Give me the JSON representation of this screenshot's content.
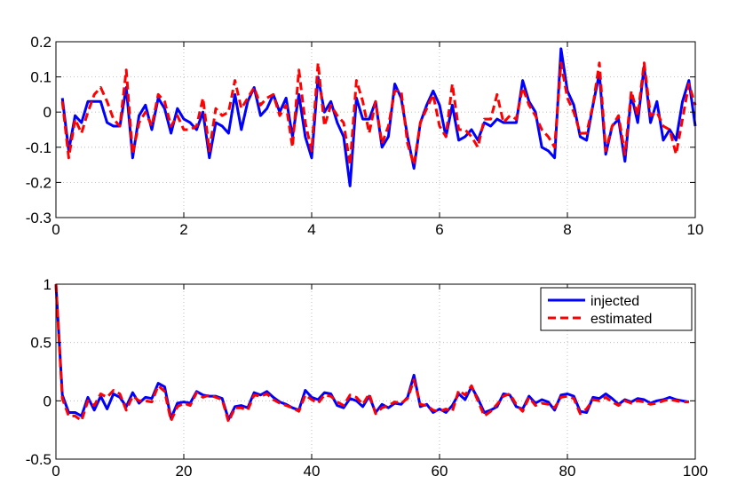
{
  "chart_data": [
    {
      "type": "line",
      "title": "",
      "xlabel": "",
      "ylabel": "",
      "xlim": [
        0,
        10
      ],
      "ylim": [
        -0.3,
        0.2
      ],
      "xticks": [
        0,
        2,
        4,
        6,
        8,
        10
      ],
      "yticks": [
        -0.3,
        -0.2,
        -0.1,
        0,
        0.1,
        0.2
      ],
      "xtick_labels": [
        "0",
        "2",
        "4",
        "6",
        "8",
        "10"
      ],
      "ytick_labels": [
        "-0.3",
        "-0.2",
        "-0.1",
        "0",
        "0.1",
        "0.2"
      ],
      "grid": true,
      "x": [
        0.1,
        0.2,
        0.3,
        0.4,
        0.5,
        0.6,
        0.7,
        0.8,
        0.9,
        1.0,
        1.1,
        1.2,
        1.3,
        1.4,
        1.5,
        1.6,
        1.7,
        1.8,
        1.9,
        2.0,
        2.1,
        2.2,
        2.3,
        2.4,
        2.5,
        2.6,
        2.7,
        2.8,
        2.9,
        3.0,
        3.1,
        3.2,
        3.3,
        3.4,
        3.5,
        3.6,
        3.7,
        3.8,
        3.9,
        4.0,
        4.1,
        4.2,
        4.3,
        4.4,
        4.5,
        4.6,
        4.7,
        4.8,
        4.9,
        5.0,
        5.1,
        5.2,
        5.3,
        5.4,
        5.5,
        5.6,
        5.7,
        5.8,
        5.9,
        6.0,
        6.1,
        6.2,
        6.3,
        6.4,
        6.5,
        6.6,
        6.7,
        6.8,
        6.9,
        7.0,
        7.1,
        7.2,
        7.3,
        7.4,
        7.5,
        7.6,
        7.7,
        7.8,
        7.9,
        8.0,
        8.1,
        8.2,
        8.3,
        8.4,
        8.5,
        8.6,
        8.7,
        8.8,
        8.9,
        9.0,
        9.1,
        9.2,
        9.3,
        9.4,
        9.5,
        9.6,
        9.7,
        9.8,
        9.9,
        10.0
      ],
      "series": [
        {
          "name": "injected",
          "color": "#0000ff",
          "style": "solid",
          "values": [
            0.04,
            -0.11,
            -0.01,
            -0.03,
            0.03,
            0.03,
            0.03,
            -0.03,
            -0.04,
            -0.04,
            0.07,
            -0.13,
            -0.01,
            0.02,
            -0.05,
            0.04,
            0.01,
            -0.06,
            0.01,
            -0.02,
            -0.03,
            -0.05,
            0.0,
            -0.13,
            -0.03,
            -0.04,
            -0.06,
            0.05,
            -0.05,
            0.03,
            0.07,
            -0.01,
            0.01,
            0.05,
            0.0,
            0.04,
            -0.07,
            0.05,
            -0.07,
            -0.13,
            0.1,
            0.0,
            0.03,
            -0.03,
            -0.07,
            -0.21,
            0.04,
            -0.02,
            -0.02,
            0.03,
            -0.1,
            -0.07,
            0.08,
            0.04,
            -0.07,
            -0.16,
            -0.03,
            0.02,
            0.06,
            0.02,
            -0.07,
            0.02,
            -0.08,
            -0.07,
            -0.05,
            -0.08,
            -0.03,
            -0.04,
            -0.02,
            -0.03,
            -0.03,
            -0.03,
            0.09,
            0.03,
            0.0,
            -0.1,
            -0.11,
            -0.13,
            0.18,
            0.06,
            0.02,
            -0.07,
            -0.08,
            0.02,
            0.11,
            -0.12,
            -0.04,
            -0.02,
            -0.14,
            0.05,
            -0.03,
            0.13,
            -0.03,
            0.03,
            -0.08,
            -0.05,
            -0.08,
            0.03,
            0.09,
            -0.04
          ]
        },
        {
          "name": "estimated",
          "color": "#ff0000",
          "style": "dashed",
          "values": [
            0.03,
            -0.13,
            -0.02,
            -0.06,
            0.0,
            0.05,
            0.07,
            0.03,
            -0.02,
            -0.04,
            0.12,
            -0.12,
            -0.03,
            0.0,
            -0.04,
            0.05,
            0.03,
            -0.04,
            -0.01,
            -0.05,
            -0.05,
            -0.04,
            0.04,
            -0.11,
            0.01,
            -0.01,
            0.0,
            0.09,
            0.01,
            0.04,
            0.07,
            0.02,
            0.04,
            0.05,
            -0.01,
            0.02,
            -0.1,
            0.12,
            -0.03,
            -0.11,
            0.14,
            -0.04,
            0.02,
            -0.01,
            -0.03,
            -0.15,
            0.09,
            0.03,
            -0.06,
            0.03,
            -0.09,
            -0.04,
            0.06,
            0.06,
            -0.09,
            -0.15,
            -0.03,
            0.01,
            0.05,
            -0.04,
            -0.07,
            0.08,
            -0.05,
            -0.05,
            -0.07,
            -0.1,
            -0.02,
            -0.02,
            0.05,
            -0.03,
            -0.01,
            -0.02,
            0.07,
            0.02,
            -0.01,
            -0.05,
            -0.07,
            -0.1,
            0.14,
            0.04,
            0.0,
            -0.06,
            -0.06,
            0.02,
            0.14,
            -0.11,
            -0.04,
            -0.01,
            -0.12,
            0.06,
            -0.01,
            0.14,
            -0.01,
            0.0,
            -0.04,
            -0.05,
            -0.12,
            -0.02,
            0.08,
            0.02
          ]
        }
      ]
    },
    {
      "type": "line",
      "title": "",
      "xlabel": "",
      "ylabel": "",
      "xlim": [
        0,
        100
      ],
      "ylim": [
        -0.5,
        1
      ],
      "xticks": [
        0,
        20,
        40,
        60,
        80,
        100
      ],
      "yticks": [
        -0.5,
        0,
        0.5,
        1
      ],
      "xtick_labels": [
        "0",
        "20",
        "40",
        "60",
        "80",
        "100"
      ],
      "ytick_labels": [
        "-0.5",
        "0",
        "0.5",
        "1"
      ],
      "grid": true,
      "legend": {
        "position": "top-right",
        "entries": [
          "injected",
          "estimated"
        ]
      },
      "x": [
        0,
        1,
        2,
        3,
        4,
        5,
        6,
        7,
        8,
        9,
        10,
        11,
        12,
        13,
        14,
        15,
        16,
        17,
        18,
        19,
        20,
        21,
        22,
        23,
        24,
        25,
        26,
        27,
        28,
        29,
        30,
        31,
        32,
        33,
        34,
        35,
        36,
        37,
        38,
        39,
        40,
        41,
        42,
        43,
        44,
        45,
        46,
        47,
        48,
        49,
        50,
        51,
        52,
        53,
        54,
        55,
        56,
        57,
        58,
        59,
        60,
        61,
        62,
        63,
        64,
        65,
        66,
        67,
        68,
        69,
        70,
        71,
        72,
        73,
        74,
        75,
        76,
        77,
        78,
        79,
        80,
        81,
        82,
        83,
        84,
        85,
        86,
        87,
        88,
        89,
        90,
        91,
        92,
        93,
        94,
        95,
        96,
        97,
        98,
        99
      ],
      "series": [
        {
          "name": "injected",
          "color": "#0000ff",
          "style": "solid",
          "values": [
            1.0,
            0.05,
            -0.1,
            -0.1,
            -0.13,
            0.03,
            -0.08,
            0.04,
            -0.07,
            0.06,
            0.03,
            -0.05,
            0.07,
            -0.02,
            0.03,
            0.02,
            0.15,
            0.12,
            -0.15,
            -0.02,
            -0.01,
            -0.02,
            0.08,
            0.05,
            0.04,
            0.04,
            0.02,
            -0.16,
            -0.05,
            -0.04,
            -0.06,
            0.07,
            0.05,
            0.08,
            0.03,
            -0.01,
            -0.03,
            -0.06,
            -0.08,
            0.09,
            0.03,
            0.01,
            0.07,
            0.06,
            -0.04,
            -0.06,
            0.02,
            0.0,
            -0.05,
            0.04,
            -0.1,
            -0.03,
            -0.06,
            -0.02,
            -0.03,
            0.03,
            0.22,
            -0.05,
            -0.03,
            -0.1,
            -0.07,
            -0.1,
            -0.04,
            0.06,
            0.01,
            0.12,
            0.02,
            -0.1,
            -0.08,
            -0.05,
            0.06,
            0.05,
            -0.05,
            -0.07,
            0.04,
            -0.02,
            0.01,
            -0.01,
            -0.08,
            0.05,
            0.06,
            0.04,
            -0.09,
            -0.1,
            0.03,
            0.02,
            0.06,
            0.02,
            -0.03,
            0.01,
            -0.01,
            0.02,
            0.01,
            -0.02,
            0.0,
            0.01,
            0.03,
            0.01,
            0.0,
            -0.01
          ]
        },
        {
          "name": "estimated",
          "color": "#ff0000",
          "style": "dashed",
          "values": [
            1.0,
            0.02,
            -0.13,
            -0.13,
            -0.17,
            0.0,
            -0.04,
            0.06,
            0.03,
            0.09,
            0.06,
            -0.08,
            0.04,
            0.0,
            0.0,
            -0.01,
            0.13,
            0.08,
            -0.17,
            -0.05,
            -0.02,
            -0.04,
            0.07,
            0.03,
            0.05,
            0.03,
            0.01,
            -0.18,
            -0.06,
            -0.06,
            -0.08,
            0.05,
            0.04,
            0.06,
            0.01,
            -0.02,
            -0.04,
            -0.06,
            -0.09,
            0.05,
            0.01,
            -0.02,
            0.05,
            0.04,
            -0.01,
            -0.04,
            0.05,
            0.03,
            -0.03,
            0.06,
            -0.11,
            -0.06,
            -0.04,
            -0.01,
            -0.02,
            0.02,
            0.18,
            -0.03,
            -0.04,
            -0.08,
            -0.09,
            -0.07,
            -0.09,
            0.09,
            0.05,
            0.13,
            0.0,
            -0.13,
            -0.09,
            -0.03,
            0.04,
            0.06,
            -0.03,
            -0.09,
            0.03,
            -0.04,
            -0.02,
            -0.03,
            -0.06,
            0.03,
            0.04,
            0.02,
            -0.11,
            -0.07,
            0.01,
            0.0,
            0.03,
            -0.01,
            -0.04,
            0.0,
            -0.02,
            0.0,
            -0.01,
            -0.03,
            -0.02,
            0.0,
            0.01,
            0.0,
            -0.01,
            -0.01
          ]
        }
      ]
    }
  ]
}
